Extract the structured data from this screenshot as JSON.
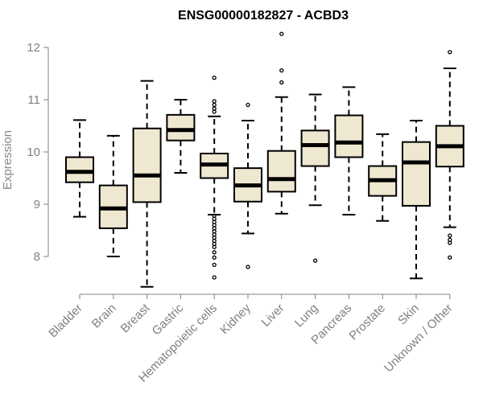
{
  "chart_data": {
    "type": "boxplot",
    "title": "ENSG00000182827 - ACBD3",
    "ylabel": "Expression",
    "xlabel": "",
    "ylim": [
      7.4,
      12.3
    ],
    "yticks": [
      8,
      9,
      10,
      11,
      12
    ],
    "box_fill": "#EFE8D0",
    "categories": [
      "Bladder",
      "Brain",
      "Breast",
      "Gastric",
      "Hematopoietic cells",
      "Kidney",
      "Liver",
      "Lung",
      "Pancreas",
      "Prostate",
      "Skin",
      "Unknown / Other"
    ],
    "boxes": [
      {
        "whisker_low": 8.76,
        "q1": 9.42,
        "median": 9.62,
        "q3": 9.9,
        "whisker_high": 10.61,
        "outliers": []
      },
      {
        "whisker_low": 8.0,
        "q1": 8.54,
        "median": 8.92,
        "q3": 9.36,
        "whisker_high": 10.31,
        "outliers": []
      },
      {
        "whisker_low": 7.42,
        "q1": 9.04,
        "median": 9.55,
        "q3": 10.45,
        "whisker_high": 11.36,
        "outliers": []
      },
      {
        "whisker_low": 9.6,
        "q1": 10.22,
        "median": 10.42,
        "q3": 10.71,
        "whisker_high": 11.0,
        "outliers": []
      },
      {
        "whisker_low": 8.8,
        "q1": 9.5,
        "median": 9.76,
        "q3": 9.97,
        "whisker_high": 10.68,
        "outliers": [
          11.42,
          10.97,
          10.9,
          10.83,
          10.77,
          8.78,
          8.72,
          8.66,
          8.6,
          8.54,
          8.48,
          8.42,
          8.36,
          8.3,
          8.24,
          8.18,
          8.08,
          7.98,
          7.84,
          7.6
        ]
      },
      {
        "whisker_low": 8.44,
        "q1": 9.05,
        "median": 9.36,
        "q3": 9.69,
        "whisker_high": 10.6,
        "outliers": [
          10.9,
          7.8
        ]
      },
      {
        "whisker_low": 8.82,
        "q1": 9.24,
        "median": 9.48,
        "q3": 10.02,
        "whisker_high": 11.05,
        "outliers": [
          12.26,
          11.56,
          11.33
        ]
      },
      {
        "whisker_low": 8.98,
        "q1": 9.73,
        "median": 10.13,
        "q3": 10.41,
        "whisker_high": 11.1,
        "outliers": [
          7.92
        ]
      },
      {
        "whisker_low": 8.8,
        "q1": 9.9,
        "median": 10.18,
        "q3": 10.7,
        "whisker_high": 11.24,
        "outliers": []
      },
      {
        "whisker_low": 8.68,
        "q1": 9.16,
        "median": 9.46,
        "q3": 9.73,
        "whisker_high": 10.34,
        "outliers": []
      },
      {
        "whisker_low": 7.58,
        "q1": 8.97,
        "median": 9.8,
        "q3": 10.19,
        "whisker_high": 10.6,
        "outliers": []
      },
      {
        "whisker_low": 8.56,
        "q1": 9.72,
        "median": 10.11,
        "q3": 10.5,
        "whisker_high": 11.6,
        "outliers": [
          11.91,
          8.4,
          8.32,
          8.26,
          7.98
        ]
      }
    ]
  }
}
